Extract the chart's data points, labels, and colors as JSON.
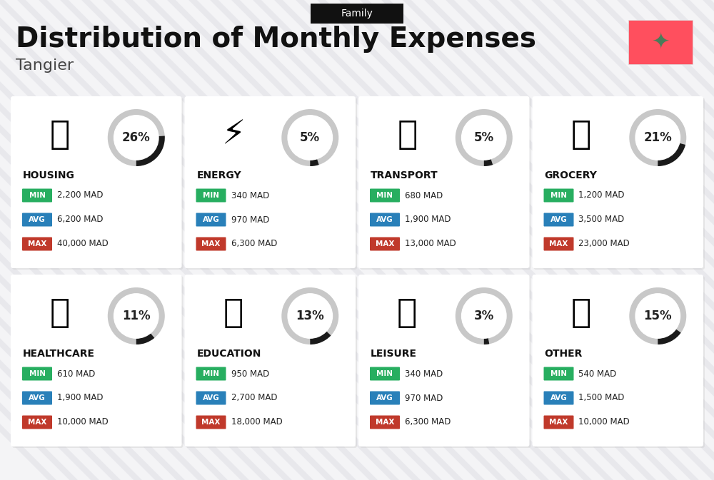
{
  "title": "Distribution of Monthly Expenses",
  "subtitle": "Family",
  "city": "Tangier",
  "bg_color": "#f4f4f6",
  "categories": [
    {
      "name": "HOUSING",
      "percent": 26,
      "min": "2,200 MAD",
      "avg": "6,200 MAD",
      "max": "40,000 MAD",
      "row": 0,
      "col": 0
    },
    {
      "name": "ENERGY",
      "percent": 5,
      "min": "340 MAD",
      "avg": "970 MAD",
      "max": "6,300 MAD",
      "row": 0,
      "col": 1
    },
    {
      "name": "TRANSPORT",
      "percent": 5,
      "min": "680 MAD",
      "avg": "1,900 MAD",
      "max": "13,000 MAD",
      "row": 0,
      "col": 2
    },
    {
      "name": "GROCERY",
      "percent": 21,
      "min": "1,200 MAD",
      "avg": "3,500 MAD",
      "max": "23,000 MAD",
      "row": 0,
      "col": 3
    },
    {
      "name": "HEALTHCARE",
      "percent": 11,
      "min": "610 MAD",
      "avg": "1,900 MAD",
      "max": "10,000 MAD",
      "row": 1,
      "col": 0
    },
    {
      "name": "EDUCATION",
      "percent": 13,
      "min": "950 MAD",
      "avg": "2,700 MAD",
      "max": "18,000 MAD",
      "row": 1,
      "col": 1
    },
    {
      "name": "LEISURE",
      "percent": 3,
      "min": "340 MAD",
      "avg": "970 MAD",
      "max": "6,300 MAD",
      "row": 1,
      "col": 2
    },
    {
      "name": "OTHER",
      "percent": 15,
      "min": "540 MAD",
      "avg": "1,500 MAD",
      "max": "10,000 MAD",
      "row": 1,
      "col": 3
    }
  ],
  "min_color": "#27ae60",
  "avg_color": "#2980b9",
  "max_color": "#c0392b",
  "arc_filled_color": "#1a1a1a",
  "arc_bg_color": "#c8c8c8",
  "card_bg": "#ffffff",
  "title_color": "#111111",
  "city_color": "#444444",
  "category_name_color": "#111111",
  "flag_red": "#ff4f5e",
  "flag_green": "#4a7c59",
  "family_box_color": "#111111"
}
